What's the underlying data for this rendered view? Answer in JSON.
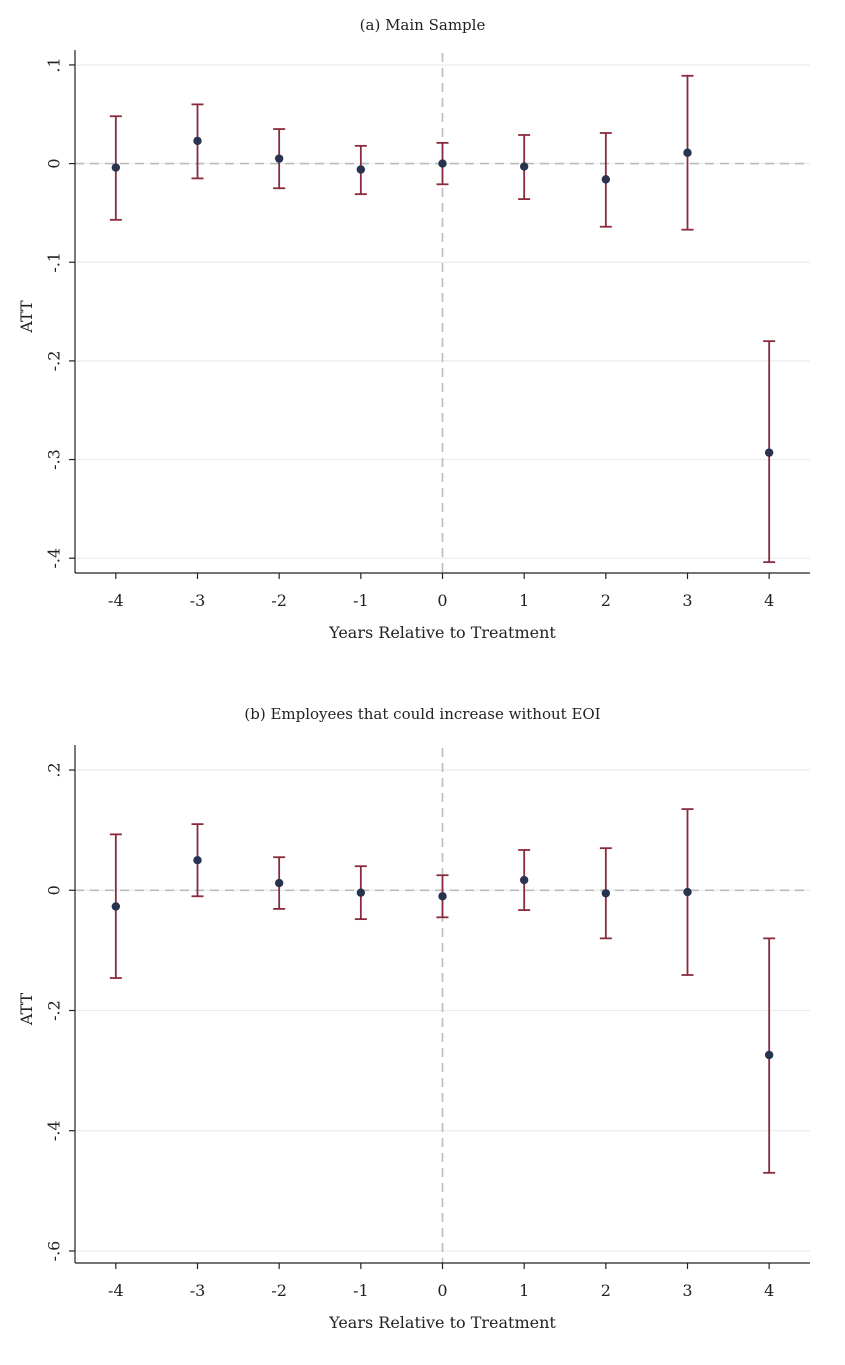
{
  "chart_data": [
    {
      "type": "scatter",
      "title": "(a) Main Sample",
      "xlabel": "Years Relative to Treatment",
      "ylabel": "ATT",
      "x": [
        -4,
        -3,
        -2,
        -1,
        0,
        1,
        2,
        3,
        4
      ],
      "y": [
        -0.004,
        0.023,
        0.005,
        -0.006,
        0.0,
        -0.003,
        -0.016,
        0.011,
        -0.293
      ],
      "ci_low": [
        -0.057,
        -0.015,
        -0.025,
        -0.031,
        -0.021,
        -0.036,
        -0.064,
        -0.067,
        -0.404
      ],
      "ci_high": [
        0.048,
        0.06,
        0.035,
        0.018,
        0.021,
        0.029,
        0.031,
        0.089,
        -0.18
      ],
      "xlim": [
        -4.5,
        4.5
      ],
      "ylim": [
        -0.415,
        0.105
      ],
      "yticks": [
        0.1,
        0.0,
        -0.1,
        -0.2,
        -0.3,
        -0.4
      ],
      "ytick_labels": [
        ".1",
        "0",
        "-.1",
        "-.2",
        "-.3",
        "-.4"
      ],
      "xticks": [
        -4,
        -3,
        -2,
        -1,
        0,
        1,
        2,
        3,
        4
      ],
      "xtick_labels": [
        "-4",
        "-3",
        "-2",
        "-1",
        "0",
        "1",
        "2",
        "3",
        "4"
      ],
      "grid": true,
      "reference_lines": {
        "y": 0,
        "x": 0
      }
    },
    {
      "type": "scatter",
      "title": "(b) Employees that could increase without EOI",
      "xlabel": "Years Relative to Treatment",
      "ylabel": "ATT",
      "x": [
        -4,
        -3,
        -2,
        -1,
        0,
        1,
        2,
        3,
        4
      ],
      "y": [
        -0.027,
        0.05,
        0.012,
        -0.004,
        -0.01,
        0.017,
        -0.005,
        -0.003,
        -0.274
      ],
      "ci_low": [
        -0.146,
        -0.01,
        -0.031,
        -0.048,
        -0.045,
        -0.033,
        -0.08,
        -0.141,
        -0.47
      ],
      "ci_high": [
        0.093,
        0.11,
        0.055,
        0.04,
        0.025,
        0.067,
        0.07,
        0.135,
        -0.08
      ],
      "xlim": [
        -4.5,
        4.5
      ],
      "ylim": [
        -0.62,
        0.225
      ],
      "yticks": [
        0.2,
        0.0,
        -0.2,
        -0.4,
        -0.6
      ],
      "ytick_labels": [
        ".2",
        "0",
        "-.2",
        "-.4",
        "-.6"
      ],
      "xticks": [
        -4,
        -3,
        -2,
        -1,
        0,
        1,
        2,
        3,
        4
      ],
      "xtick_labels": [
        "-4",
        "-3",
        "-2",
        "-1",
        "0",
        "1",
        "2",
        "3",
        "4"
      ],
      "grid": true,
      "reference_lines": {
        "y": 0,
        "x": 0
      }
    }
  ],
  "colors": {
    "ci_bar": "#8a2b3d",
    "point": "#27334f",
    "grid": "#e6eef2",
    "reference": "#bbbbbb",
    "axis": "#222222"
  }
}
